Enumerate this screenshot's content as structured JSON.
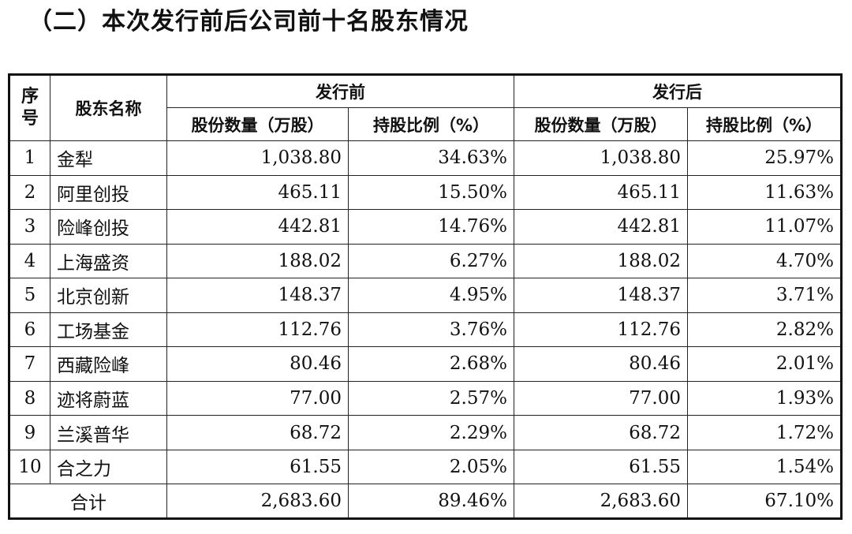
{
  "title": "（二）本次发行前后公司前十名股东情况",
  "headers": {
    "seq": "序号",
    "seq_top": "序",
    "seq_bottom": "号",
    "name": "股东名称",
    "before": "发行前",
    "after": "发行后",
    "shares": "股份数量（万股）",
    "ratio": "持股比例（%）"
  },
  "rows": [
    {
      "idx": "1",
      "name": "金犁",
      "before_shares": "1,038.80",
      "before_ratio": "34.63%",
      "after_shares": "1,038.80",
      "after_ratio": "25.97%"
    },
    {
      "idx": "2",
      "name": "阿里创投",
      "before_shares": "465.11",
      "before_ratio": "15.50%",
      "after_shares": "465.11",
      "after_ratio": "11.63%"
    },
    {
      "idx": "3",
      "name": "险峰创投",
      "before_shares": "442.81",
      "before_ratio": "14.76%",
      "after_shares": "442.81",
      "after_ratio": "11.07%"
    },
    {
      "idx": "4",
      "name": "上海盛资",
      "before_shares": "188.02",
      "before_ratio": "6.27%",
      "after_shares": "188.02",
      "after_ratio": "4.70%"
    },
    {
      "idx": "5",
      "name": "北京创新",
      "before_shares": "148.37",
      "before_ratio": "4.95%",
      "after_shares": "148.37",
      "after_ratio": "3.71%"
    },
    {
      "idx": "6",
      "name": "工场基金",
      "before_shares": "112.76",
      "before_ratio": "3.76%",
      "after_shares": "112.76",
      "after_ratio": "2.82%"
    },
    {
      "idx": "7",
      "name": "西藏险峰",
      "before_shares": "80.46",
      "before_ratio": "2.68%",
      "after_shares": "80.46",
      "after_ratio": "2.01%"
    },
    {
      "idx": "8",
      "name": "迹将蔚蓝",
      "before_shares": "77.00",
      "before_ratio": "2.57%",
      "after_shares": "77.00",
      "after_ratio": "1.93%"
    },
    {
      "idx": "9",
      "name": "兰溪普华",
      "before_shares": "68.72",
      "before_ratio": "2.29%",
      "after_shares": "68.72",
      "after_ratio": "1.72%"
    },
    {
      "idx": "10",
      "name": "合之力",
      "before_shares": "61.55",
      "before_ratio": "2.05%",
      "after_shares": "61.55",
      "after_ratio": "1.54%"
    }
  ],
  "total": {
    "label": "合计",
    "before_shares": "2,683.60",
    "before_ratio": "89.46%",
    "after_shares": "2,683.60",
    "after_ratio": "67.10%"
  }
}
